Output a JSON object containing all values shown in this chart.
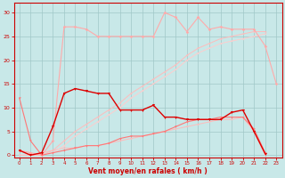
{
  "x": [
    0,
    1,
    2,
    3,
    4,
    5,
    6,
    7,
    8,
    9,
    10,
    11,
    12,
    13,
    14,
    15,
    16,
    17,
    18,
    19,
    20,
    21,
    22,
    23
  ],
  "upper_pink": [
    1,
    0.5,
    0,
    3,
    27,
    27,
    26.5,
    25,
    25,
    25,
    25,
    25,
    25,
    30,
    29,
    26,
    29,
    26.5,
    27,
    26.5,
    26.5,
    26.5,
    23,
    15
  ],
  "diag1": [
    0,
    0,
    0,
    1,
    3,
    5,
    6.5,
    8,
    9.5,
    11,
    13,
    14.5,
    16,
    17.5,
    19,
    21,
    22.5,
    23.5,
    24.5,
    25,
    25.5,
    26,
    26,
    null
  ],
  "diag2": [
    0,
    0,
    0,
    0.5,
    2,
    4,
    5.5,
    7,
    8.5,
    10,
    12,
    13.5,
    15,
    16.5,
    18,
    20,
    21.5,
    22.5,
    23.5,
    24,
    24.5,
    25,
    25.5,
    null
  ],
  "dark_red": [
    1,
    0,
    0.5,
    6,
    13,
    14,
    13.5,
    13,
    13,
    9.5,
    9.5,
    9.5,
    10.5,
    8,
    8,
    7.5,
    7.5,
    7.5,
    7.5,
    9,
    9.5,
    5,
    0.3,
    null
  ],
  "med_red": [
    12,
    3,
    0,
    0.5,
    1,
    1.5,
    2,
    2,
    2.5,
    3.5,
    4,
    4,
    4.5,
    5,
    6,
    7,
    7.5,
    7.5,
    8,
    8,
    8,
    5.5,
    0.5,
    null
  ],
  "low_pink": [
    1,
    0,
    0.5,
    1,
    1.5,
    1.5,
    2,
    2,
    2.5,
    3,
    3.5,
    4,
    4.5,
    5,
    5.5,
    6,
    6.5,
    7,
    7.5,
    7.5,
    8,
    5,
    0,
    null
  ],
  "bg_color": "#c8e8e8",
  "grid_color": "#a0c8c8",
  "xlabel": "Vent moyen/en rafales ( km/h )",
  "ylim": [
    -0.5,
    32
  ],
  "xlim": [
    -0.5,
    23.5
  ],
  "yticks": [
    0,
    5,
    10,
    15,
    20,
    25,
    30
  ],
  "xticks": [
    0,
    1,
    2,
    3,
    4,
    5,
    6,
    7,
    8,
    9,
    10,
    11,
    12,
    13,
    14,
    15,
    16,
    17,
    18,
    19,
    20,
    21,
    22,
    23
  ]
}
